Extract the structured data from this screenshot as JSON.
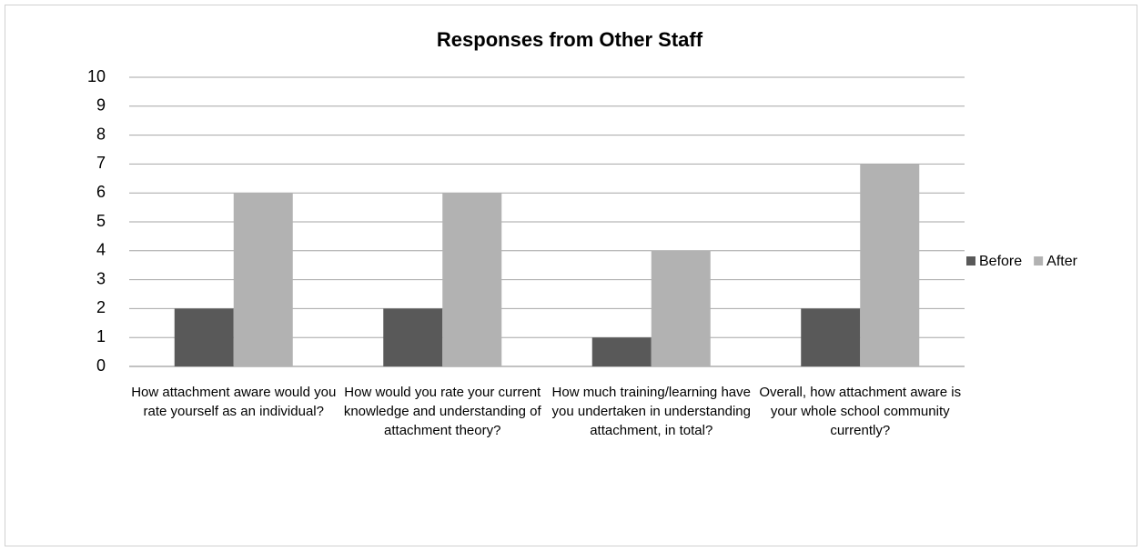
{
  "chart_data": {
    "type": "bar",
    "title": "Responses from Other Staff",
    "categories": [
      "How attachment aware would you rate yourself as an individual?",
      "How would you rate your current knowledge and understanding of attachment theory?",
      "How much training/learning have you undertaken in understanding attachment, in total?",
      "Overall, how attachment aware is your whole school community currently?"
    ],
    "series": [
      {
        "name": "Before",
        "color": "#595959",
        "values": [
          2,
          2,
          1,
          2
        ]
      },
      {
        "name": "After",
        "color": "#b2b2b2",
        "values": [
          6,
          6,
          4,
          7
        ]
      }
    ],
    "ylim": [
      0,
      10
    ],
    "yticks": [
      0,
      1,
      2,
      3,
      4,
      5,
      6,
      7,
      8,
      9,
      10
    ],
    "grid": true,
    "legend": "right"
  }
}
